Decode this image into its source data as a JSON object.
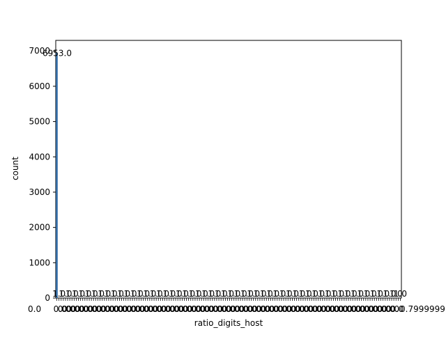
{
  "chart_data": {
    "type": "bar",
    "title": "",
    "xlabel": "ratio_digits_host",
    "ylabel": "count",
    "ylim": [
      0,
      7300
    ],
    "yticks": [
      0,
      1000,
      2000,
      3000,
      4000,
      5000,
      6000,
      7000
    ],
    "category_count": 160,
    "first_category": "0.0",
    "last_category": "0.7999999",
    "first_value": 6953,
    "first_value_label": "6953.0",
    "overflow_text": "1.0",
    "small_value_label": "1.0",
    "axis_color": "#000000",
    "grid": false
  }
}
